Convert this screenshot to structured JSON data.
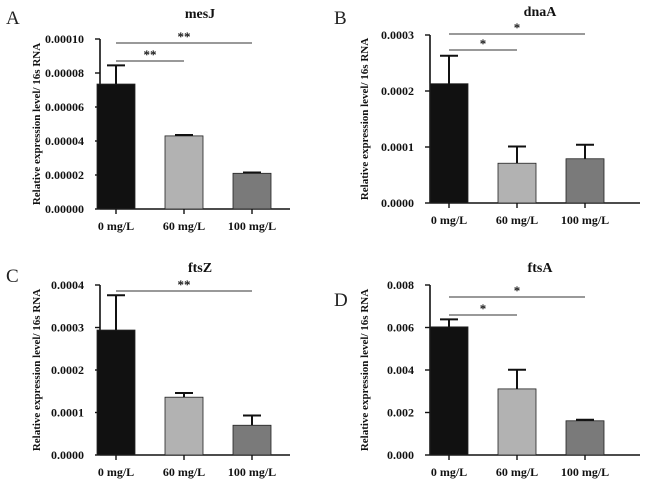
{
  "chart_data": [
    {
      "type": "bar",
      "panel": "A",
      "title": "mesJ",
      "ylabel": "Relative  expression level/ 16s RNA",
      "categories": [
        "0 mg/L",
        "60 mg/L",
        "100 mg/L"
      ],
      "values": [
        7.35e-05,
        4.3e-05,
        2.1e-05
      ],
      "errors": [
        1.1e-05,
        5e-07,
        5e-07
      ],
      "ylim": [
        0,
        0.0001
      ],
      "yticks": [
        "0.00000",
        "0.00002",
        "0.00004",
        "0.00006",
        "0.00008",
        "0.00010"
      ],
      "colors": [
        "#111111",
        "#b2b2b2",
        "#7a7a7a"
      ],
      "significance": [
        {
          "from": 0,
          "to": 2,
          "label": "**"
        },
        {
          "from": 0,
          "to": 1,
          "label": "**"
        }
      ]
    },
    {
      "type": "bar",
      "panel": "B",
      "title": "dnaA",
      "ylabel": "Relative  expression level/ 16s RNA",
      "categories": [
        "0 mg/L",
        "60 mg/L",
        "100 mg/L"
      ],
      "values": [
        0.000213,
        7.1e-05,
        7.9e-05
      ],
      "errors": [
        5e-05,
        3e-05,
        2.5e-05
      ],
      "ylim": [
        0,
        0.0003
      ],
      "yticks": [
        "0.0000",
        "0.0001",
        "0.0002",
        "0.0003"
      ],
      "colors": [
        "#111111",
        "#b2b2b2",
        "#7a7a7a"
      ],
      "significance": [
        {
          "from": 0,
          "to": 2,
          "label": "*"
        },
        {
          "from": 0,
          "to": 1,
          "label": "*"
        }
      ]
    },
    {
      "type": "bar",
      "panel": "C",
      "title": "ftsZ",
      "ylabel": "Relative  expression level/ 16s RNA",
      "categories": [
        "0 mg/L",
        "60 mg/L",
        "100 mg/L"
      ],
      "values": [
        0.000294,
        0.000136,
        7e-05
      ],
      "errors": [
        8.2e-05,
        1e-05,
        2.3e-05
      ],
      "ylim": [
        0,
        0.0004
      ],
      "yticks": [
        "0.0000",
        "0.0001",
        "0.0002",
        "0.0003",
        "0.0004"
      ],
      "colors": [
        "#111111",
        "#b2b2b2",
        "#7a7a7a"
      ],
      "significance": [
        {
          "from": 0,
          "to": 2,
          "label": "**"
        }
      ]
    },
    {
      "type": "bar",
      "panel": "D",
      "title": "ftsA",
      "ylabel": "Relative  expression level/ 16s RNA",
      "categories": [
        "0 mg/L",
        "60 mg/L",
        "100 mg/L"
      ],
      "values": [
        0.00603,
        0.00311,
        0.00161
      ],
      "errors": [
        0.00035,
        0.0009,
        5e-05
      ],
      "ylim": [
        0,
        0.008
      ],
      "yticks": [
        "0.000",
        "0.002",
        "0.004",
        "0.006",
        "0.008"
      ],
      "colors": [
        "#111111",
        "#b2b2b2",
        "#7a7a7a"
      ],
      "significance": [
        {
          "from": 0,
          "to": 2,
          "label": "*"
        },
        {
          "from": 0,
          "to": 1,
          "label": "*"
        }
      ]
    }
  ]
}
